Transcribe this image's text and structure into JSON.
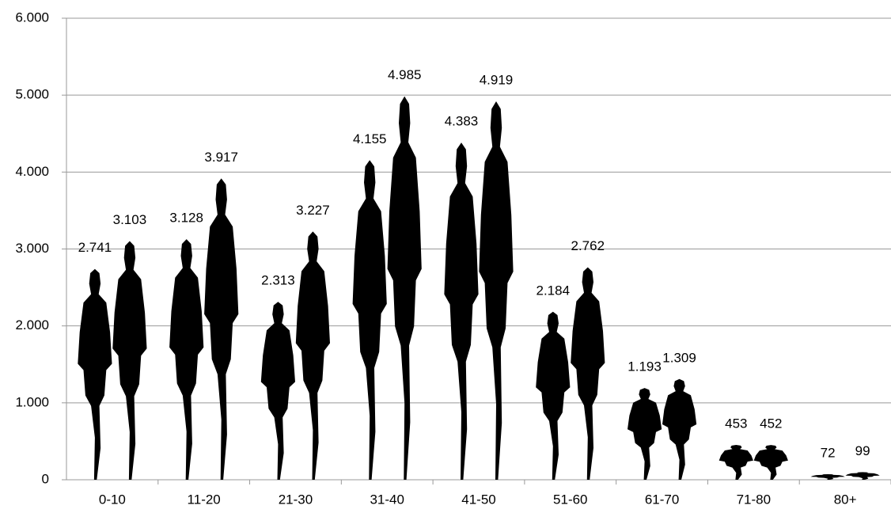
{
  "chart_data": {
    "type": "pictograph",
    "categories": [
      "0-10",
      "11-20",
      "21-30",
      "31-40",
      "41-50",
      "51-60",
      "61-70",
      "71-80",
      "80+"
    ],
    "series": [
      {
        "color": "#000000",
        "values": [
          2741,
          3128,
          2313,
          4155,
          4383,
          2184,
          1193,
          453,
          72
        ],
        "value_labels": [
          "2.741",
          "3.128",
          "2.313",
          "4.155",
          "4.383",
          "2.184",
          "1.193",
          "453",
          "72"
        ]
      },
      {
        "color": "#000000",
        "values": [
          3103,
          3917,
          3227,
          4985,
          4919,
          2762,
          1309,
          452,
          99
        ],
        "value_labels": [
          "3.103",
          "3.917",
          "3.227",
          "4.985",
          "4.919",
          "2.762",
          "1.309",
          "452",
          "99"
        ]
      }
    ],
    "ylim": [
      0,
      6000
    ],
    "yticks": [
      0,
      {
        "value": 1000,
        "label": "1.000"
      },
      {
        "value": 2000,
        "label": "2.000"
      },
      {
        "value": 3000,
        "label": "3.000"
      },
      {
        "value": 4000,
        "label": "4.000"
      },
      {
        "value": 5000,
        "label": "5.000"
      },
      {
        "value": 6000,
        "label": "6.000"
      }
    ],
    "grid": true
  }
}
